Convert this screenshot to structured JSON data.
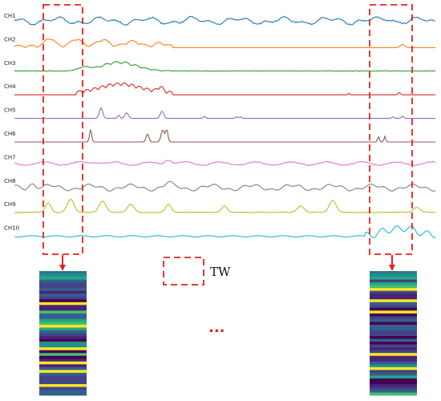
{
  "channels": [
    {
      "label": "CH1",
      "color": "#1f77b4"
    },
    {
      "label": "CH2",
      "color": "#ff7f0e"
    },
    {
      "label": "CH3",
      "color": "#2ca02c"
    },
    {
      "label": "CH4",
      "color": "#d62728"
    },
    {
      "label": "CH5",
      "color": "#9467bd"
    },
    {
      "label": "CH6",
      "color": "#8c564b"
    },
    {
      "label": "CH7",
      "color": "#e377c2"
    },
    {
      "label": "CH8",
      "color": "#7f7f7f"
    },
    {
      "label": "CH9",
      "color": "#bcbd22"
    },
    {
      "label": "CH10",
      "color": "#17becf"
    }
  ],
  "legend": {
    "label": "TW",
    "color": "#e8211c"
  },
  "ellipsis": "...",
  "accent_color": "#e8211c",
  "heatmap_palette": [
    "#440154",
    "#482475",
    "#414487",
    "#355f8d",
    "#2a788e",
    "#21918c",
    "#22a884",
    "#44bf70",
    "#7ad151",
    "#bddf26",
    "#fde725"
  ]
}
